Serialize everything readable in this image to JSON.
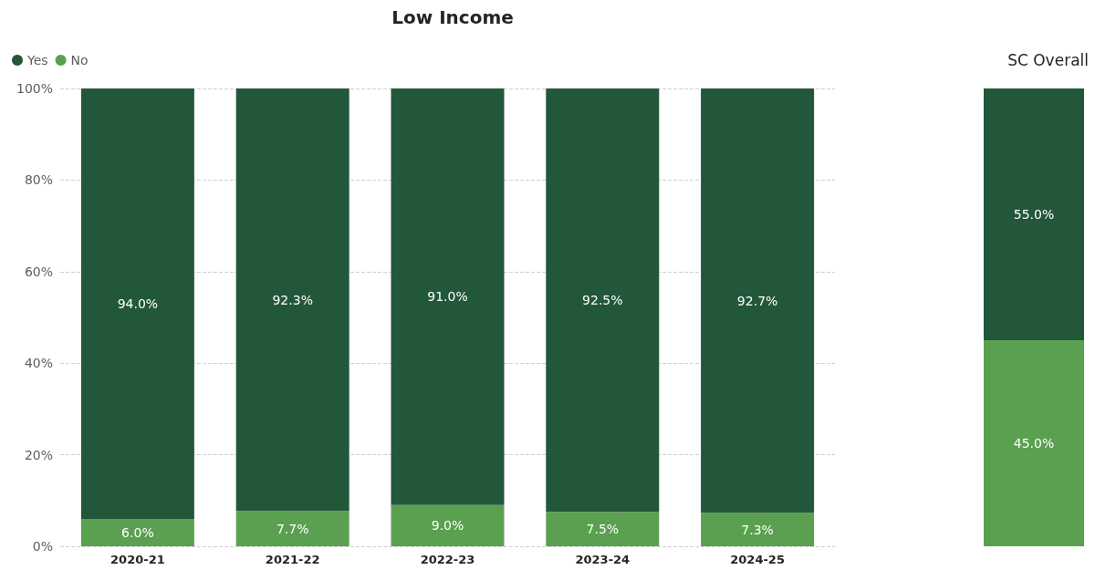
{
  "chart_data": [
    {
      "type": "bar",
      "title": "Low Income",
      "stacked": true,
      "categories": [
        "2020-21",
        "2021-22",
        "2022-23",
        "2023-24",
        "2024-25"
      ],
      "series": [
        {
          "name": "No",
          "color": "#5aa050",
          "values": [
            6.0,
            7.7,
            9.0,
            7.5,
            7.3
          ],
          "value_labels": [
            "6.0%",
            "7.7%",
            "9.0%",
            "7.5%",
            "7.3%"
          ]
        },
        {
          "name": "Yes",
          "color": "#22573a",
          "values": [
            94.0,
            92.3,
            91.0,
            92.5,
            92.7
          ],
          "value_labels": [
            "94.0%",
            "92.3%",
            "91.0%",
            "92.5%",
            "92.7%"
          ]
        }
      ],
      "ylim": [
        0,
        100
      ],
      "yticks": [
        {
          "value": 0,
          "label": "0%"
        },
        {
          "value": 20,
          "label": "20%"
        },
        {
          "value": 40,
          "label": "40%"
        },
        {
          "value": 60,
          "label": "60%"
        },
        {
          "value": 80,
          "label": "80%"
        },
        {
          "value": 100,
          "label": "100%"
        }
      ],
      "grid": "y",
      "legend": "top left"
    },
    {
      "type": "bar",
      "title": "SC Overall",
      "stacked": true,
      "categories": [
        null
      ],
      "series": [
        {
          "color": "#5aa050",
          "values": [
            45.0
          ],
          "value_labels": [
            "45.0%"
          ]
        },
        {
          "color": "#22573a",
          "values": [
            55.0
          ],
          "value_labels": [
            "55.0%"
          ]
        }
      ],
      "ylim": [
        0,
        100
      ],
      "tick_labels": false,
      "legend": false
    }
  ]
}
